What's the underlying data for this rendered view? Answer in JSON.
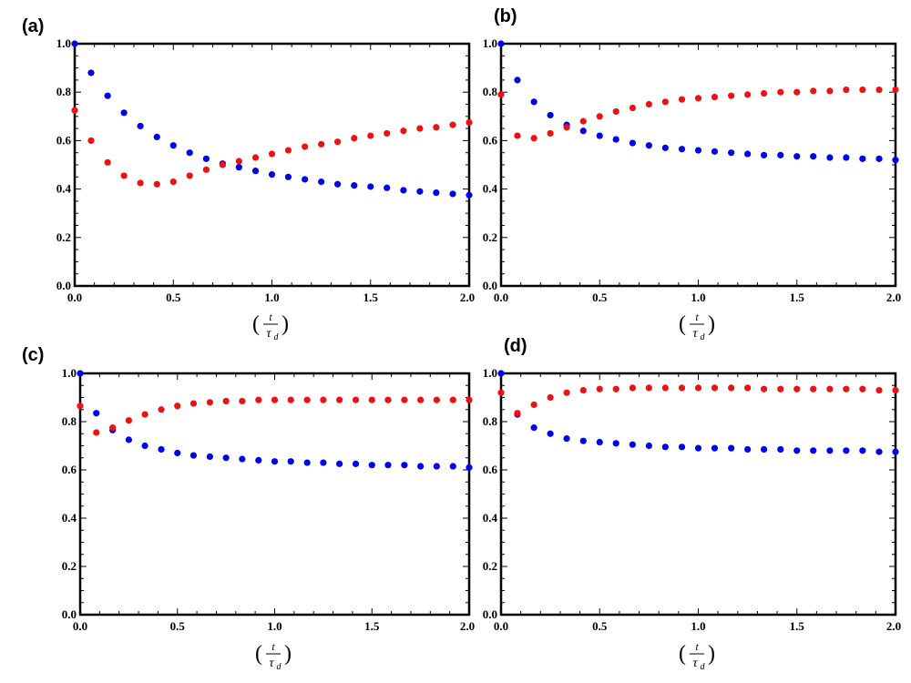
{
  "chart_data": [
    {
      "type": "scatter",
      "panel_label": "(a)",
      "xlabel": {
        "open": "(",
        "numerator": "t",
        "denominator": "τ",
        "subscript": "d",
        "close": ")"
      },
      "xlim": [
        0,
        2
      ],
      "ylim": [
        0,
        1
      ],
      "xticks": [
        "0.0",
        "0.5",
        "1.0",
        "1.5",
        "2.0"
      ],
      "yticks": [
        "0.0",
        "0.2",
        "0.4",
        "0.6",
        "0.8",
        "1.0"
      ],
      "grid": false,
      "series": [
        {
          "color": "#0000ee",
          "x": [
            0,
            0.083,
            0.167,
            0.25,
            0.333,
            0.417,
            0.5,
            0.583,
            0.667,
            0.75,
            0.833,
            0.917,
            1.0,
            1.083,
            1.167,
            1.25,
            1.333,
            1.417,
            1.5,
            1.583,
            1.667,
            1.75,
            1.833,
            1.917,
            2.0
          ],
          "y": [
            1.0,
            0.88,
            0.785,
            0.715,
            0.66,
            0.615,
            0.58,
            0.55,
            0.525,
            0.505,
            0.49,
            0.475,
            0.46,
            0.45,
            0.44,
            0.43,
            0.42,
            0.415,
            0.41,
            0.405,
            0.395,
            0.39,
            0.385,
            0.38,
            0.375
          ]
        },
        {
          "color": "#ee1111",
          "x": [
            0,
            0.083,
            0.167,
            0.25,
            0.333,
            0.417,
            0.5,
            0.583,
            0.667,
            0.75,
            0.833,
            0.917,
            1.0,
            1.083,
            1.167,
            1.25,
            1.333,
            1.417,
            1.5,
            1.583,
            1.667,
            1.75,
            1.833,
            1.917,
            2.0
          ],
          "y": [
            0.725,
            0.6,
            0.51,
            0.455,
            0.425,
            0.42,
            0.43,
            0.455,
            0.48,
            0.5,
            0.515,
            0.53,
            0.545,
            0.56,
            0.575,
            0.585,
            0.595,
            0.61,
            0.62,
            0.63,
            0.64,
            0.65,
            0.655,
            0.665,
            0.675
          ]
        }
      ]
    },
    {
      "type": "scatter",
      "panel_label": "(b)",
      "xlabel": {
        "open": "(",
        "numerator": "t",
        "denominator": "τ",
        "subscript": "d",
        "close": ")"
      },
      "xlim": [
        0,
        2
      ],
      "ylim": [
        0,
        1
      ],
      "xticks": [
        "0.0",
        "0.5",
        "1.0",
        "1.5",
        "2.0"
      ],
      "yticks": [
        "0.0",
        "0.2",
        "0.4",
        "0.6",
        "0.8",
        "1.0"
      ],
      "grid": false,
      "series": [
        {
          "color": "#0000ee",
          "x": [
            0,
            0.083,
            0.167,
            0.25,
            0.333,
            0.417,
            0.5,
            0.583,
            0.667,
            0.75,
            0.833,
            0.917,
            1.0,
            1.083,
            1.167,
            1.25,
            1.333,
            1.417,
            1.5,
            1.583,
            1.667,
            1.75,
            1.833,
            1.917,
            2.0
          ],
          "y": [
            1.0,
            0.85,
            0.76,
            0.705,
            0.665,
            0.64,
            0.62,
            0.605,
            0.59,
            0.58,
            0.57,
            0.565,
            0.56,
            0.555,
            0.55,
            0.545,
            0.54,
            0.54,
            0.535,
            0.535,
            0.53,
            0.53,
            0.525,
            0.525,
            0.52
          ]
        },
        {
          "color": "#ee1111",
          "x": [
            0,
            0.083,
            0.167,
            0.25,
            0.333,
            0.417,
            0.5,
            0.583,
            0.667,
            0.75,
            0.833,
            0.917,
            1.0,
            1.083,
            1.167,
            1.25,
            1.333,
            1.417,
            1.5,
            1.583,
            1.667,
            1.75,
            1.833,
            1.917,
            2.0
          ],
          "y": [
            0.79,
            0.62,
            0.61,
            0.63,
            0.655,
            0.68,
            0.7,
            0.72,
            0.735,
            0.75,
            0.76,
            0.77,
            0.775,
            0.78,
            0.785,
            0.79,
            0.795,
            0.8,
            0.8,
            0.805,
            0.805,
            0.81,
            0.81,
            0.81,
            0.81
          ]
        }
      ]
    },
    {
      "type": "scatter",
      "panel_label": "(c)",
      "xlabel": {
        "open": "(",
        "numerator": "t",
        "denominator": "τ",
        "subscript": "d",
        "close": ")"
      },
      "xlim": [
        0,
        2
      ],
      "ylim": [
        0,
        1
      ],
      "xticks": [
        "0.0",
        "0.5",
        "1.0",
        "1.5",
        "2.0"
      ],
      "yticks": [
        "0.0",
        "0.2",
        "0.4",
        "0.6",
        "0.8",
        "1.0"
      ],
      "grid": false,
      "series": [
        {
          "color": "#0000ee",
          "x": [
            0,
            0.083,
            0.167,
            0.25,
            0.333,
            0.417,
            0.5,
            0.583,
            0.667,
            0.75,
            0.833,
            0.917,
            1.0,
            1.083,
            1.167,
            1.25,
            1.333,
            1.417,
            1.5,
            1.583,
            1.667,
            1.75,
            1.833,
            1.917,
            2.0
          ],
          "y": [
            1.0,
            0.835,
            0.765,
            0.725,
            0.7,
            0.685,
            0.67,
            0.66,
            0.655,
            0.65,
            0.645,
            0.64,
            0.635,
            0.635,
            0.63,
            0.63,
            0.625,
            0.625,
            0.62,
            0.62,
            0.62,
            0.615,
            0.615,
            0.615,
            0.61
          ]
        },
        {
          "color": "#ee1111",
          "x": [
            0,
            0.083,
            0.167,
            0.25,
            0.333,
            0.417,
            0.5,
            0.583,
            0.667,
            0.75,
            0.833,
            0.917,
            1.0,
            1.083,
            1.167,
            1.25,
            1.333,
            1.417,
            1.5,
            1.583,
            1.667,
            1.75,
            1.833,
            1.917,
            2.0
          ],
          "y": [
            0.865,
            0.755,
            0.775,
            0.805,
            0.83,
            0.85,
            0.865,
            0.875,
            0.88,
            0.885,
            0.885,
            0.89,
            0.89,
            0.89,
            0.89,
            0.89,
            0.89,
            0.89,
            0.89,
            0.89,
            0.89,
            0.89,
            0.89,
            0.89,
            0.89
          ]
        }
      ]
    },
    {
      "type": "scatter",
      "panel_label": "(d)",
      "xlabel": {
        "open": "(",
        "numerator": "t",
        "denominator": "τ",
        "subscript": "d",
        "close": ")"
      },
      "xlim": [
        0,
        2
      ],
      "ylim": [
        0,
        1
      ],
      "xticks": [
        "0.0",
        "0.5",
        "1.0",
        "1.5",
        "2.0"
      ],
      "yticks": [
        "0.0",
        "0.2",
        "0.4",
        "0.6",
        "0.8",
        "1.0"
      ],
      "grid": false,
      "series": [
        {
          "color": "#0000ee",
          "x": [
            0,
            0.083,
            0.167,
            0.25,
            0.333,
            0.417,
            0.5,
            0.583,
            0.667,
            0.75,
            0.833,
            0.917,
            1.0,
            1.083,
            1.167,
            1.25,
            1.333,
            1.417,
            1.5,
            1.583,
            1.667,
            1.75,
            1.833,
            1.917,
            2.0
          ],
          "y": [
            1.0,
            0.83,
            0.775,
            0.75,
            0.73,
            0.72,
            0.715,
            0.71,
            0.705,
            0.7,
            0.695,
            0.695,
            0.69,
            0.69,
            0.69,
            0.685,
            0.685,
            0.685,
            0.68,
            0.68,
            0.68,
            0.68,
            0.68,
            0.675,
            0.675
          ]
        },
        {
          "color": "#ee1111",
          "x": [
            0,
            0.083,
            0.167,
            0.25,
            0.333,
            0.417,
            0.5,
            0.583,
            0.667,
            0.75,
            0.833,
            0.917,
            1.0,
            1.083,
            1.167,
            1.25,
            1.333,
            1.417,
            1.5,
            1.583,
            1.667,
            1.75,
            1.833,
            1.917,
            2.0
          ],
          "y": [
            0.92,
            0.835,
            0.87,
            0.9,
            0.92,
            0.93,
            0.935,
            0.935,
            0.94,
            0.94,
            0.94,
            0.94,
            0.94,
            0.94,
            0.94,
            0.94,
            0.935,
            0.935,
            0.935,
            0.935,
            0.935,
            0.935,
            0.935,
            0.93,
            0.93
          ]
        }
      ]
    }
  ]
}
